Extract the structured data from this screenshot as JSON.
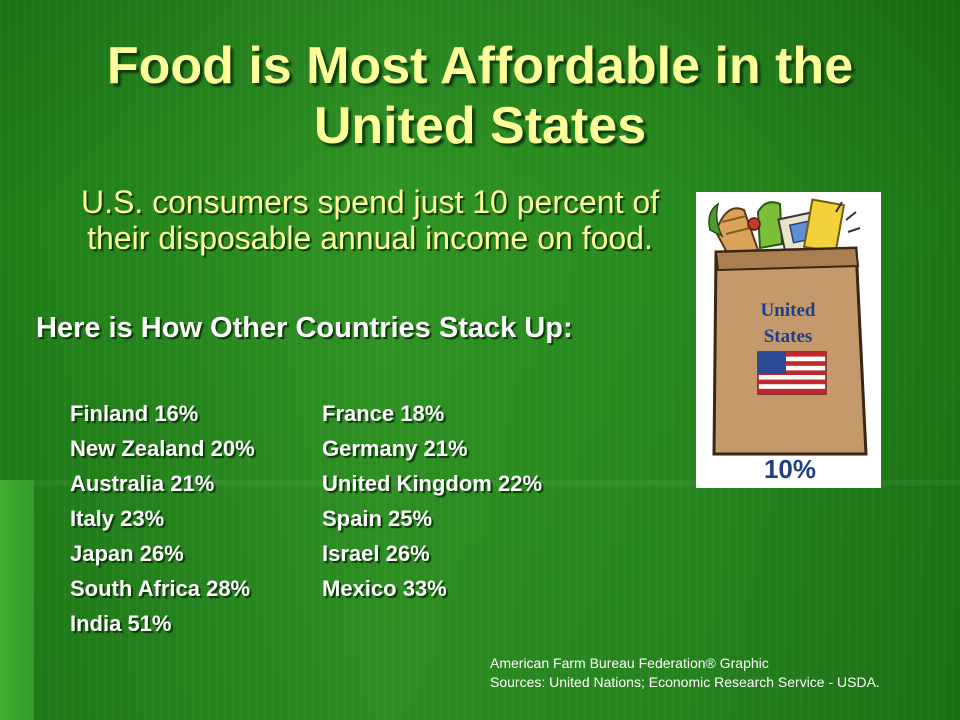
{
  "slide": {
    "title": "Food is Most Affordable in the United States",
    "subtitle": "U.S. consumers spend just 10 percent of their disposable annual income on food.",
    "stack_heading": "Here is How Other Countries Stack Up:",
    "countries_left": [
      "Finland 16%",
      "New Zealand 20%",
      "Australia 21%",
      "Italy 23%",
      "Japan 26%",
      "South Africa 28%",
      "India 51%"
    ],
    "countries_right": [
      "France 18%",
      "Germany 21%",
      "United Kingdom 22%",
      "Spain 25%",
      "Israel 26%",
      "Mexico 33%"
    ],
    "source_line_1": "American Farm Bureau Federation® Graphic",
    "source_line_2": "Sources: United Nations; Economic Research Service - USDA."
  },
  "graphic": {
    "bag_label_line_1": "United",
    "bag_label_line_2": "States",
    "bag_percent": "10%"
  },
  "colors": {
    "background": "#2a8a1f",
    "title": "#ffff9a",
    "text": "#ffffff",
    "bag": "#c49a6c",
    "label_blue": "#1f3f86"
  }
}
